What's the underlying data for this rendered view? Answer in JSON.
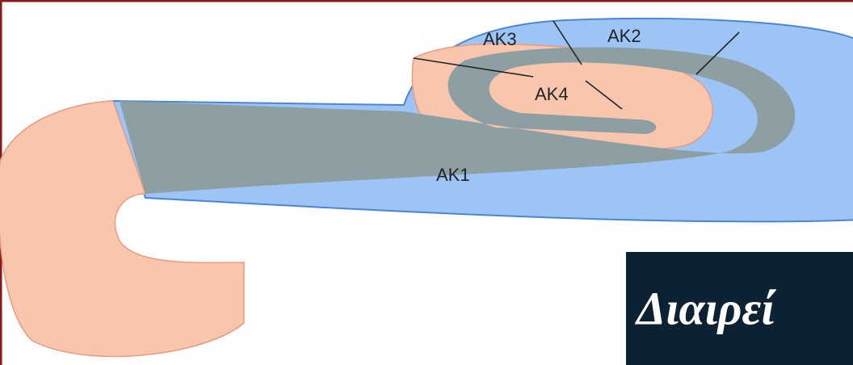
{
  "diagram": {
    "labels": [
      "AK1",
      "AK2",
      "AK3",
      "AK4"
    ]
  },
  "banner": {
    "text": "Διαιρεί"
  }
}
